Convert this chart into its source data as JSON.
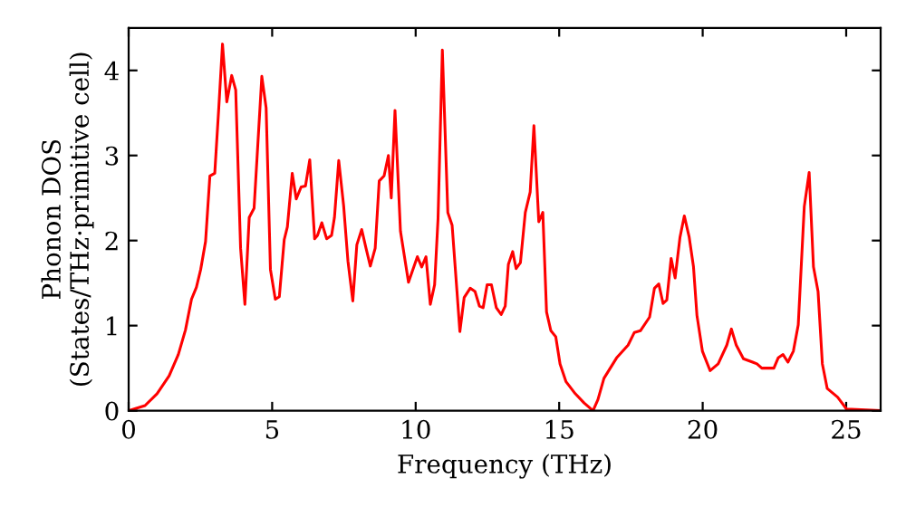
{
  "chart_data": {
    "type": "line",
    "xlabel": "Frequency (THz)",
    "ylabel": "Phonon DOS\n(States/THz·primitive cell)",
    "xlim": [
      0,
      26.2
    ],
    "ylim": [
      0,
      4.5
    ],
    "xticks": [
      0,
      5,
      10,
      15,
      20,
      25
    ],
    "yticks": [
      0,
      1,
      2,
      3,
      4
    ],
    "grid": false,
    "marker": "none",
    "line_style": "solid",
    "series": [
      {
        "color": "#ff0000",
        "x": [
          0,
          0.57,
          0.99,
          1.41,
          1.73,
          1.98,
          2.19,
          2.36,
          2.51,
          2.68,
          2.83,
          3.0,
          3.14,
          3.27,
          3.42,
          3.59,
          3.73,
          3.9,
          4.05,
          4.2,
          4.37,
          4.64,
          4.79,
          4.94,
          5.11,
          5.25,
          5.42,
          5.53,
          5.7,
          5.84,
          6.01,
          6.16,
          6.31,
          6.48,
          6.58,
          6.73,
          6.9,
          7.07,
          7.17,
          7.32,
          7.49,
          7.64,
          7.81,
          7.95,
          8.12,
          8.27,
          8.42,
          8.59,
          8.73,
          8.9,
          9.05,
          9.15,
          9.28,
          9.47,
          9.75,
          10.06,
          10.21,
          10.36,
          10.51,
          10.66,
          10.78,
          10.93,
          11.12,
          11.27,
          11.44,
          11.54,
          11.69,
          11.9,
          12.07,
          12.22,
          12.35,
          12.49,
          12.64,
          12.81,
          12.98,
          13.12,
          13.23,
          13.38,
          13.5,
          13.65,
          13.82,
          13.99,
          14.12,
          14.29,
          14.43,
          14.56,
          14.71,
          14.88,
          15.03,
          15.24,
          15.56,
          15.87,
          16.18,
          16.35,
          16.56,
          17.0,
          17.4,
          17.62,
          17.83,
          18.15,
          18.32,
          18.47,
          18.62,
          18.75,
          18.9,
          19.04,
          19.21,
          19.36,
          19.53,
          19.68,
          19.8,
          19.99,
          20.26,
          20.54,
          20.84,
          21.0,
          21.17,
          21.42,
          21.74,
          21.89,
          22.06,
          22.48,
          22.63,
          22.8,
          22.97,
          23.16,
          23.33,
          23.54,
          23.71,
          23.86,
          24.02,
          24.17,
          24.34,
          24.7,
          25.01,
          26.2
        ],
        "values": [
          0,
          0.06,
          0.2,
          0.41,
          0.66,
          0.95,
          1.31,
          1.45,
          1.66,
          1.99,
          2.76,
          2.79,
          3.56,
          4.31,
          3.63,
          3.94,
          3.77,
          1.91,
          1.25,
          2.27,
          2.38,
          3.93,
          3.56,
          1.66,
          1.31,
          1.34,
          2.01,
          2.16,
          2.79,
          2.49,
          2.63,
          2.64,
          2.95,
          2.02,
          2.06,
          2.21,
          2.02,
          2.06,
          2.27,
          2.94,
          2.41,
          1.76,
          1.29,
          1.95,
          2.13,
          1.91,
          1.7,
          1.91,
          2.7,
          2.76,
          3.0,
          2.5,
          3.53,
          2.11,
          1.51,
          1.81,
          1.69,
          1.81,
          1.25,
          1.48,
          2.26,
          4.24,
          2.33,
          2.18,
          1.4,
          0.93,
          1.33,
          1.44,
          1.4,
          1.23,
          1.21,
          1.48,
          1.48,
          1.21,
          1.13,
          1.23,
          1.72,
          1.87,
          1.67,
          1.74,
          2.33,
          2.57,
          3.35,
          2.22,
          2.33,
          1.16,
          0.94,
          0.87,
          0.55,
          0.34,
          0.2,
          0.09,
          0,
          0.13,
          0.38,
          0.62,
          0.77,
          0.92,
          0.94,
          1.1,
          1.44,
          1.49,
          1.26,
          1.3,
          1.79,
          1.56,
          2.04,
          2.29,
          2.04,
          1.69,
          1.12,
          0.7,
          0.47,
          0.55,
          0.77,
          0.96,
          0.77,
          0.61,
          0.57,
          0.55,
          0.5,
          0.5,
          0.62,
          0.66,
          0.57,
          0.7,
          1.01,
          2.4,
          2.8,
          1.69,
          1.4,
          0.55,
          0.26,
          0.16,
          0.02,
          0
        ]
      }
    ]
  }
}
